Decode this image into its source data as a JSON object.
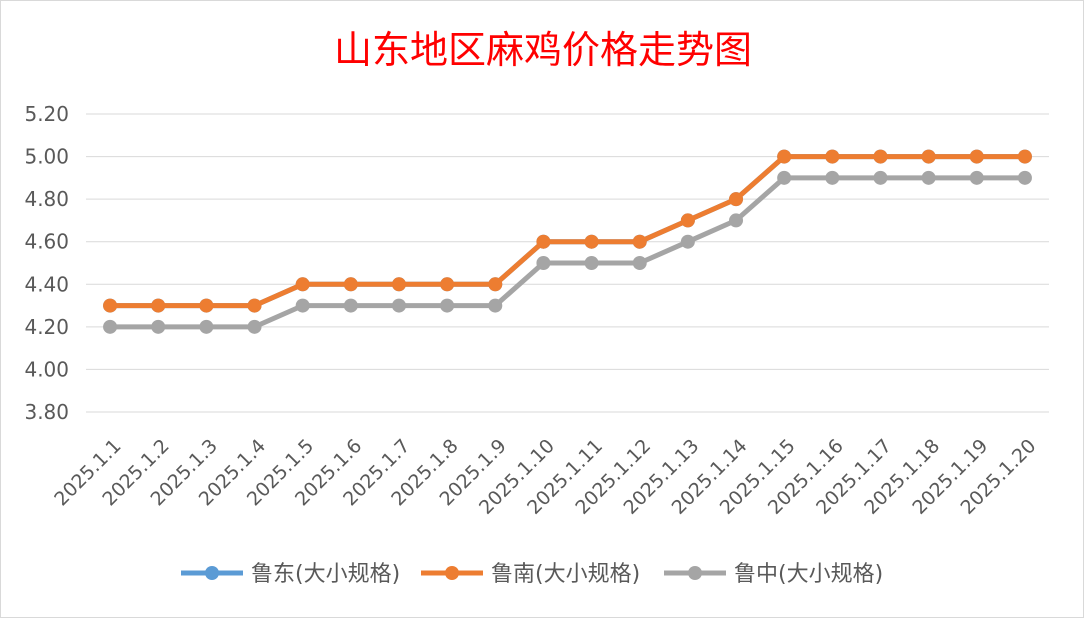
{
  "chart_data": {
    "type": "line",
    "title": "山东地区麻鸡价格走势图",
    "title_color": "#ff0000",
    "xlabel": "",
    "ylabel": "",
    "ylim": [
      3.8,
      5.2
    ],
    "y_ticks": [
      "3.80",
      "4.00",
      "4.20",
      "4.40",
      "4.60",
      "4.80",
      "5.00",
      "5.20"
    ],
    "grid": "horizontal",
    "legend_position": "bottom",
    "categories": [
      "2025.1.1",
      "2025.1.2",
      "2025.1.3",
      "2025.1.4",
      "2025.1.5",
      "2025.1.6",
      "2025.1.7",
      "2025.1.8",
      "2025.1.9",
      "2025.1.10",
      "2025.1.11",
      "2025.1.12",
      "2025.1.13",
      "2025.1.14",
      "2025.1.15",
      "2025.1.16",
      "2025.1.17",
      "2025.1.18",
      "2025.1.19",
      "2025.1.20"
    ],
    "series": [
      {
        "name": "鲁东(大小规格)",
        "color": "#5b9bd5",
        "values": [
          4.3,
          4.3,
          4.3,
          4.3,
          4.4,
          4.4,
          4.4,
          4.4,
          4.4,
          4.6,
          4.6,
          4.6,
          4.7,
          4.8,
          5.0,
          5.0,
          5.0,
          5.0,
          5.0,
          5.0
        ]
      },
      {
        "name": "鲁南(大小规格)",
        "color": "#ed7d31",
        "values": [
          4.3,
          4.3,
          4.3,
          4.3,
          4.4,
          4.4,
          4.4,
          4.4,
          4.4,
          4.6,
          4.6,
          4.6,
          4.7,
          4.8,
          5.0,
          5.0,
          5.0,
          5.0,
          5.0,
          5.0
        ]
      },
      {
        "name": "鲁中(大小规格)",
        "color": "#a5a5a5",
        "values": [
          4.2,
          4.2,
          4.2,
          4.2,
          4.3,
          4.3,
          4.3,
          4.3,
          4.3,
          4.5,
          4.5,
          4.5,
          4.6,
          4.7,
          4.9,
          4.9,
          4.9,
          4.9,
          4.9,
          4.9
        ]
      }
    ]
  }
}
